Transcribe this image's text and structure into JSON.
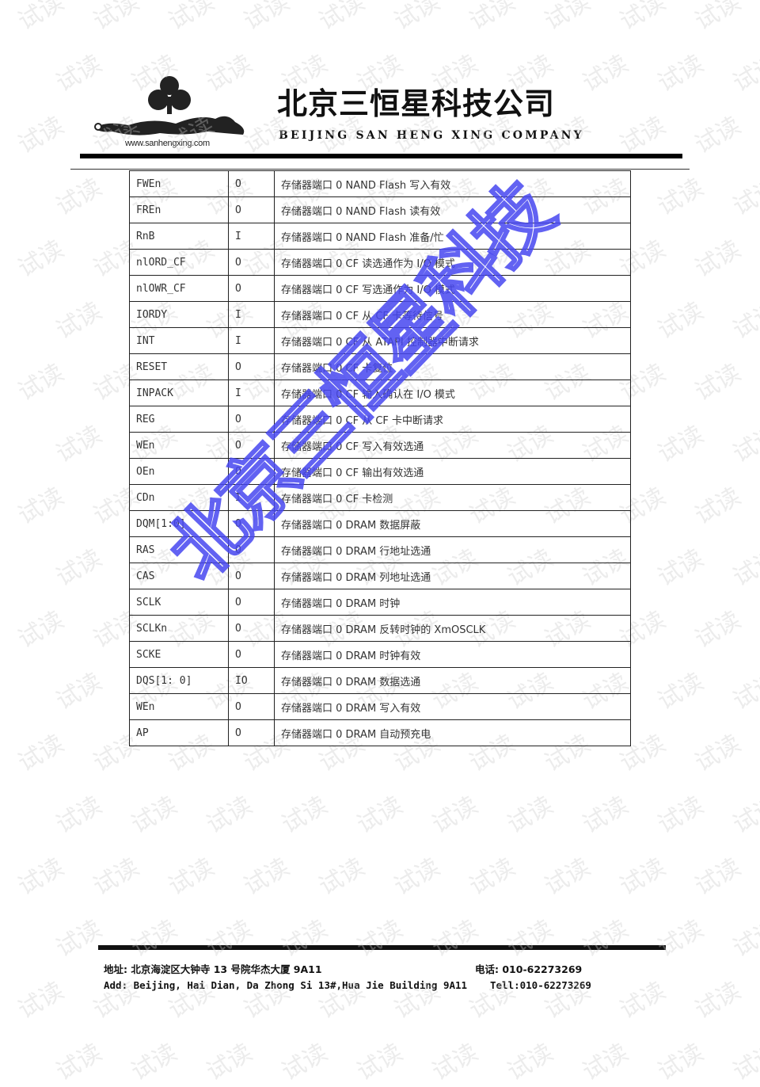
{
  "header": {
    "logo_url_text": "www.sanhengxing.com",
    "company_cn": "北京三恒星科技公司",
    "company_en": "BEIJING SAN HENG XING COMPANY"
  },
  "table": {
    "rows": [
      [
        "FWEn",
        "O",
        "存储器端口 0 NAND Flash 写入有效"
      ],
      [
        "FREn",
        "O",
        "存储器端口 0 NAND Flash 读有效"
      ],
      [
        "RnB",
        "I",
        "存储器端口 0 NAND Flash 准备/忙"
      ],
      [
        "nlORD_CF",
        "O",
        "存储器端口 0 CF 读选通作为 I/O 模式"
      ],
      [
        "nlOWR_CF",
        "O",
        "存储器端口 0 CF 写选通作为 I/O 模式"
      ],
      [
        "IORDY",
        "I",
        "存储器端口 0 CF 从 CF 卡等待信号"
      ],
      [
        "INT",
        "I",
        "存储器端口 0 CF 从 ATAPI 控制器中断请求"
      ],
      [
        "RESET",
        "O",
        "存储器端口 0 CF 卡复位"
      ],
      [
        "INPACK",
        "I",
        "存储器端口 0 CF 输入确认在 I/O 模式"
      ],
      [
        "REG",
        "O",
        "存储器端口 0 CF 从 CF 卡中断请求"
      ],
      [
        "WEn",
        "O",
        "存储器端口 0 CF 写入有效选通"
      ],
      [
        "OEn",
        "O",
        "存储器端口 0 CF 输出有效选通"
      ],
      [
        "CDn",
        "I",
        "存储器端口 0 CF 卡检测"
      ],
      [
        "DQM[1:0]",
        "O",
        "存储器端口 0 DRAM 数据屏蔽"
      ],
      [
        "RAS",
        "O",
        "存储器端口 0 DRAM 行地址选通"
      ],
      [
        "CAS",
        "O",
        "存储器端口 0 DRAM 列地址选通"
      ],
      [
        "SCLK",
        "O",
        "存储器端口 0 DRAM 时钟"
      ],
      [
        "SCLKn",
        "O",
        "存储器端口 0 DRAM 反转时钟的 XmOSCLK"
      ],
      [
        "SCKE",
        "O",
        "存储器端口 0 DRAM 时钟有效"
      ],
      [
        "DQS[1: 0]",
        "IO",
        "存储器端口 0 DRAM 数据选通"
      ],
      [
        "WEn",
        "O",
        "存储器端口 0 DRAM 写入有效"
      ],
      [
        "AP",
        "O",
        "存储器端口 0 DRAM 自动预充电"
      ]
    ]
  },
  "watermarks": {
    "stamp_text": "北京三恒星科技",
    "stamp_color": "#4646f0",
    "tile_text": "试读"
  },
  "footer": {
    "address_cn": "地址: 北京海淀区大钟寺 13 号院华杰大厦 9A11",
    "phone_cn": "电话: 010-62273269",
    "address_en": "Add:  Beijing, Hai Dian, Da Zhong Si 13#,Hua Jie Building 9A11",
    "phone_en": "Tell:010-62273269"
  }
}
